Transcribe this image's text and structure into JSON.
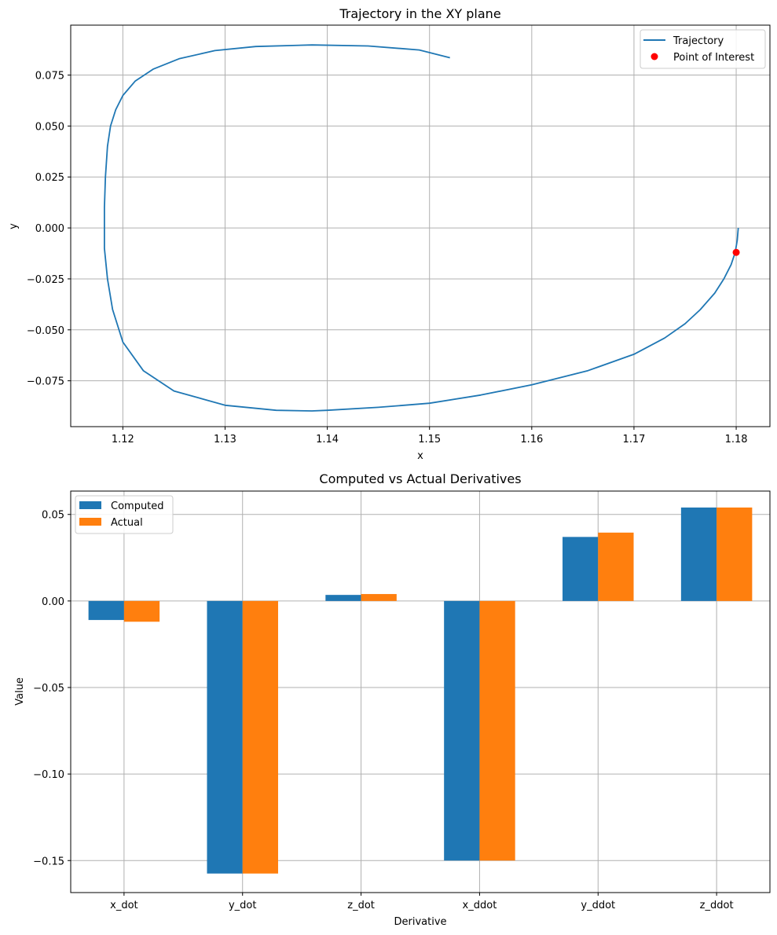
{
  "chart_data": [
    {
      "type": "line",
      "title": "Trajectory in the XY plane",
      "xlabel": "x",
      "ylabel": "y",
      "xlim": [
        1.1149,
        1.1833
      ],
      "ylim": [
        -0.0975,
        0.0995
      ],
      "xticks": [
        1.12,
        1.13,
        1.14,
        1.15,
        1.16,
        1.17,
        1.18
      ],
      "xtick_labels": [
        "1.12",
        "1.13",
        "1.14",
        "1.15",
        "1.16",
        "1.17",
        "1.18"
      ],
      "yticks": [
        0.075,
        0.05,
        0.025,
        0.0,
        -0.025,
        -0.05,
        -0.075
      ],
      "ytick_labels": [
        "0.075",
        "0.050",
        "0.025",
        "0.000",
        "−0.025",
        "−0.050",
        "−0.075"
      ],
      "grid": true,
      "legend_position": "upper right",
      "series": [
        {
          "name": "Trajectory",
          "type": "line",
          "color": "#1f77b4",
          "x": [
            1.1802,
            1.1801,
            1.1799,
            1.1795,
            1.1788,
            1.1779,
            1.1765,
            1.175,
            1.173,
            1.17,
            1.1655,
            1.16,
            1.155,
            1.15,
            1.145,
            1.14,
            1.1385,
            1.135,
            1.13,
            1.125,
            1.122,
            1.12,
            1.119,
            1.1185,
            1.1182,
            1.1182,
            1.1182,
            1.1183,
            1.1185,
            1.1188,
            1.1193,
            1.12,
            1.1212,
            1.123,
            1.1255,
            1.129,
            1.133,
            1.1385,
            1.144,
            1.149,
            1.152
          ],
          "y": [
            0.0,
            -0.006,
            -0.012,
            -0.018,
            -0.025,
            -0.032,
            -0.04,
            -0.047,
            -0.054,
            -0.062,
            -0.07,
            -0.077,
            -0.082,
            -0.086,
            -0.088,
            -0.0895,
            -0.0898,
            -0.0895,
            -0.087,
            -0.08,
            -0.07,
            -0.056,
            -0.04,
            -0.025,
            -0.01,
            0.0,
            0.01,
            0.025,
            0.04,
            0.05,
            0.058,
            0.065,
            0.072,
            0.078,
            0.083,
            0.087,
            0.089,
            0.0898,
            0.0893,
            0.0873,
            0.0835
          ]
        },
        {
          "name": "Point of Interest",
          "type": "scatter",
          "color": "#ff0000",
          "x": [
            1.18
          ],
          "y": [
            -0.012
          ]
        }
      ]
    },
    {
      "type": "bar",
      "title": "Computed vs Actual Derivatives",
      "xlabel": "Derivative",
      "ylabel": "Value",
      "ylim": [
        -0.1685,
        0.0635
      ],
      "yticks": [
        0.05,
        0.0,
        -0.05,
        -0.1,
        -0.15
      ],
      "ytick_labels": [
        "0.05",
        "0.00",
        "−0.05",
        "−0.10",
        "−0.15"
      ],
      "grid": true,
      "legend_position": "upper left",
      "categories": [
        "x_dot",
        "y_dot",
        "z_dot",
        "x_ddot",
        "y_ddot",
        "z_ddot"
      ],
      "series": [
        {
          "name": "Computed",
          "color": "#1f77b4",
          "values": [
            -0.011,
            -0.1575,
            0.0035,
            -0.15,
            0.037,
            0.054
          ]
        },
        {
          "name": "Actual",
          "color": "#ff7f0e",
          "values": [
            -0.012,
            -0.1575,
            0.004,
            -0.15,
            0.0395,
            0.054
          ]
        }
      ]
    }
  ]
}
